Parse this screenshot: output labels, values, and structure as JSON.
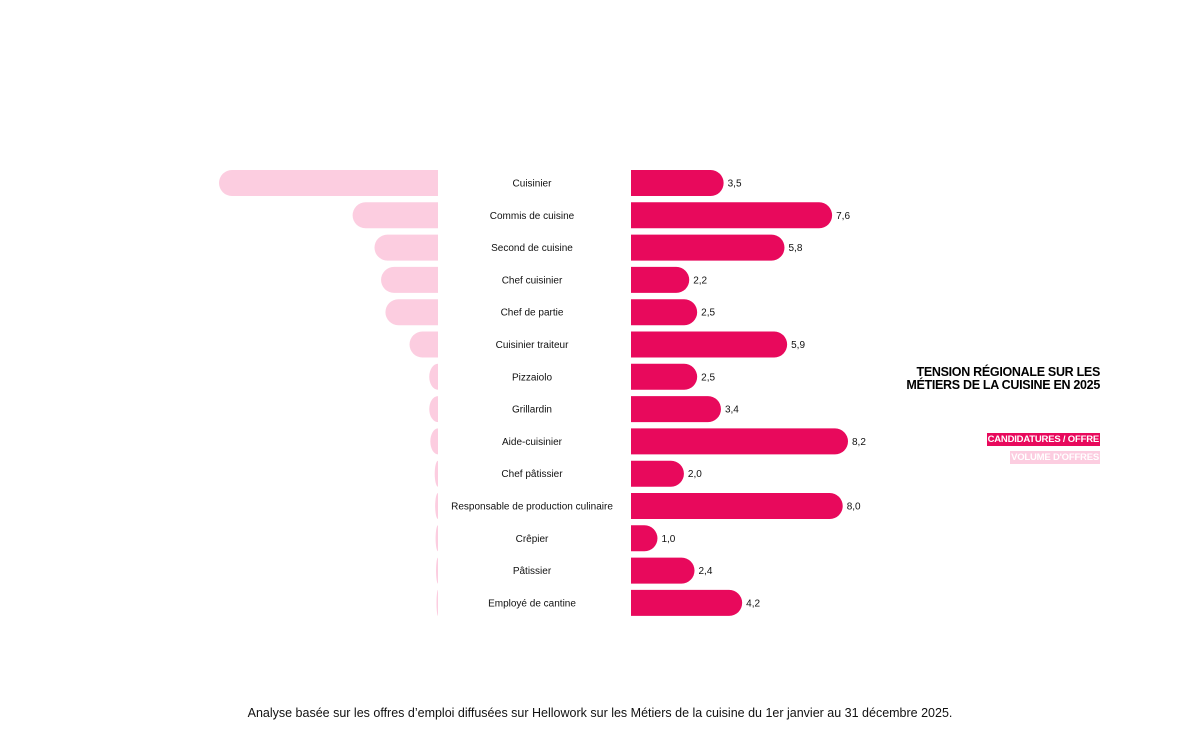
{
  "title": "TENSION RÉGIONALE SUR LES MÉTIERS DE LA CUISINE EN 2025",
  "legend": {
    "primary": "CANDIDATURES / OFFRE",
    "secondary": "VOLUME D'OFFRES"
  },
  "footnote": "Analyse basée sur les offres d’emploi diffusées sur Hellowork sur les Métiers de la cuisine du 1er janvier au 31 décembre 2025.",
  "colors": {
    "primary": "#e8095c",
    "secondary": "#fccde0"
  },
  "chart_data": {
    "type": "bar",
    "categories": [
      "Cuisinier",
      "Commis de cuisine",
      "Second de cuisine",
      "Chef cuisinier",
      "Chef de partie",
      "Cuisinier traiteur",
      "Pizzaiolo",
      "Grillardin",
      "Aide-cuisinier",
      "Chef pâtissier",
      "Responsable de production culinaire",
      "Crêpier",
      "Pâtissier",
      "Employé de cantine"
    ],
    "series": [
      {
        "name": "CANDIDATURES / OFFRE",
        "values": [
          3.5,
          7.6,
          5.8,
          2.2,
          2.5,
          5.9,
          2.5,
          3.4,
          8.2,
          2.0,
          8.0,
          1.0,
          2.4,
          4.2
        ],
        "value_labels": [
          "3,5",
          "7,6",
          "5,8",
          "2,2",
          "2,5",
          "5,9",
          "2,5",
          "3,4",
          "8,2",
          "2,0",
          "8,0",
          "1,0",
          "2,4",
          "4,2"
        ]
      },
      {
        "name": "VOLUME D'OFFRES",
        "values": [
          100,
          39,
          29,
          26,
          24,
          13,
          4,
          4,
          3.5,
          1.5,
          1.3,
          1.1,
          0.9,
          0.3
        ]
      }
    ],
    "xlim_primary": [
      0,
      8.2
    ],
    "xlim_secondary": [
      0,
      100
    ],
    "grid": false,
    "legend_position": "right"
  }
}
